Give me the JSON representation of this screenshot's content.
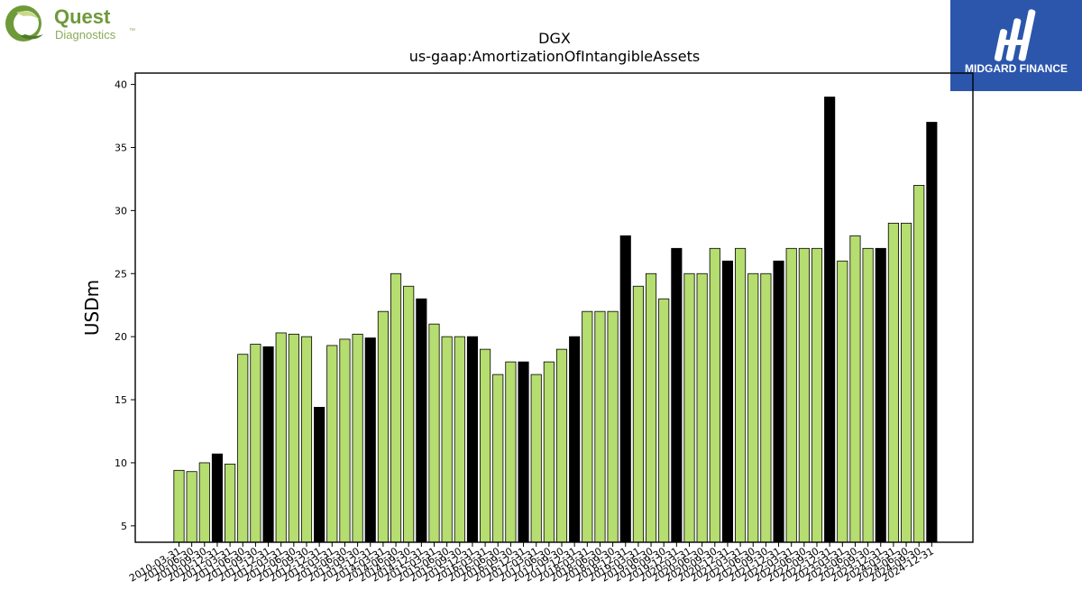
{
  "logos": {
    "left": {
      "name": "Quest",
      "sub": "Diagnostics",
      "tm": "™",
      "color": "#6e9a3a"
    },
    "right": {
      "name": "MIDGARD FINANCE",
      "bg": "#2b56ac"
    }
  },
  "chart_data": {
    "type": "bar",
    "title": "DGX",
    "subtitle": "us-gaap:AmortizationOfIntangibleAssets",
    "xlabel": "",
    "ylabel": "USDm",
    "ylim": [
      3.7,
      40.9
    ],
    "yticks": [
      5,
      10,
      15,
      20,
      25,
      30,
      35,
      40
    ],
    "grid": false,
    "colors": {
      "quarter": "#b5dd6f",
      "year_end": "#000000",
      "edge": "#000000"
    },
    "categories": [
      "2010-03-31",
      "2010-06-30",
      "2010-09-30",
      "2010-12-31",
      "2011-03-31",
      "2011-06-30",
      "2011-09-30",
      "2011-12-31",
      "2012-03-31",
      "2012-06-30",
      "2012-09-30",
      "2012-12-31",
      "2013-03-31",
      "2013-06-30",
      "2013-09-30",
      "2013-12-31",
      "2014-03-31",
      "2014-06-30",
      "2014-09-30",
      "2014-12-31",
      "2015-03-31",
      "2015-06-30",
      "2015-09-30",
      "2015-12-31",
      "2016-03-31",
      "2016-06-30",
      "2016-09-30",
      "2016-12-31",
      "2017-03-31",
      "2017-06-30",
      "2017-09-30",
      "2017-12-31",
      "2018-03-31",
      "2018-06-30",
      "2018-09-30",
      "2018-12-31",
      "2019-03-31",
      "2019-06-30",
      "2019-09-30",
      "2019-12-31",
      "2020-03-31",
      "2020-06-30",
      "2020-09-30",
      "2020-12-31",
      "2021-03-31",
      "2021-06-30",
      "2021-09-30",
      "2021-12-31",
      "2022-03-31",
      "2022-06-30",
      "2022-09-30",
      "2022-12-31",
      "2023-03-31",
      "2023-06-30",
      "2023-09-30",
      "2023-12-31",
      "2024-03-31",
      "2024-06-30",
      "2024-09-30",
      "2024-12-31"
    ],
    "values": [
      9.4,
      9.3,
      10.0,
      10.7,
      9.9,
      18.6,
      19.4,
      19.2,
      20.3,
      20.2,
      20.0,
      14.4,
      19.3,
      19.8,
      20.2,
      19.9,
      22.0,
      25.0,
      24.0,
      23.0,
      21.0,
      20.0,
      20.0,
      20.0,
      19.0,
      17.0,
      18.0,
      18.0,
      17.0,
      18.0,
      19.0,
      20.0,
      22.0,
      22.0,
      22.0,
      28.0,
      24.0,
      25.0,
      23.0,
      27.0,
      25.0,
      25.0,
      27.0,
      26.0,
      27.0,
      25.0,
      25.0,
      26.0,
      27.0,
      27.0,
      27.0,
      39.0,
      26.0,
      28.0,
      27.0,
      27.0,
      29.0,
      29.0,
      32.0,
      37.0
    ]
  }
}
